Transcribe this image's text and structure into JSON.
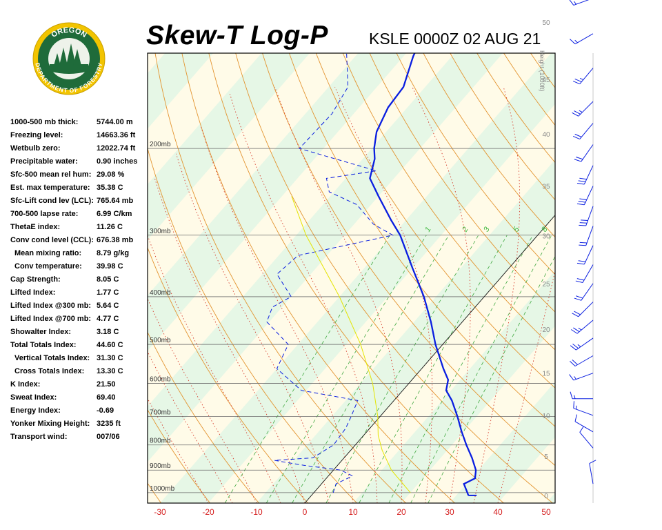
{
  "header": {
    "title": "Skew-T Log-P",
    "station": "KSLE 0000Z 02 AUG 21"
  },
  "logo": {
    "top_text": "OREGON",
    "bottom_text": "DEPARTMENT OF FORESTRY",
    "colors": {
      "ring": "#f2c400",
      "field": "#1f6b3a",
      "text": "#ffffff"
    }
  },
  "indices": [
    {
      "label": "1000-500 mb thick:",
      "value": "5744.00 m",
      "indent": false
    },
    {
      "label": "Freezing level:",
      "value": "14663.36 ft",
      "indent": false
    },
    {
      "label": "Wetbulb zero:",
      "value": "12022.74 ft",
      "indent": false
    },
    {
      "label": "Precipitable water:",
      "value": "0.90 inches",
      "indent": false
    },
    {
      "label": "Sfc-500 mean rel hum:",
      "value": "29.08 %",
      "indent": false
    },
    {
      "label": "Est. max temperature:",
      "value": "35.38 C",
      "indent": false
    },
    {
      "label": "Sfc-Lift cond lev (LCL):",
      "value": "765.64 mb",
      "indent": false
    },
    {
      "label": "700-500 lapse rate:",
      "value": "6.99 C/km",
      "indent": false
    },
    {
      "label": "ThetaE index:",
      "value": "11.26 C",
      "indent": false
    },
    {
      "label": "Conv cond level (CCL):",
      "value": "676.38 mb",
      "indent": false
    },
    {
      "label": "Mean mixing ratio:",
      "value": "8.79 g/kg",
      "indent": true
    },
    {
      "label": "Conv temperature:",
      "value": "39.98 C",
      "indent": true
    },
    {
      "label": "Cap Strength:",
      "value": "8.05 C",
      "indent": false
    },
    {
      "label": "Lifted Index:",
      "value": "1.77 C",
      "indent": false
    },
    {
      "label": "Lifted Index @300 mb:",
      "value": "5.64 C",
      "indent": false
    },
    {
      "label": "Lifted Index @700 mb:",
      "value": "4.77 C",
      "indent": false
    },
    {
      "label": "Showalter Index:",
      "value": "3.18 C",
      "indent": false
    },
    {
      "label": "Total Totals Index:",
      "value": "44.60 C",
      "indent": false
    },
    {
      "label": "Vertical Totals Index:",
      "value": "31.30 C",
      "indent": true
    },
    {
      "label": "Cross Totals Index:",
      "value": "13.30 C",
      "indent": true
    },
    {
      "label": "K Index:",
      "value": "21.50",
      "indent": false
    },
    {
      "label": "Sweat Index:",
      "value": "69.40",
      "indent": false
    },
    {
      "label": "Energy Index:",
      "value": "-0.69",
      "indent": false
    },
    {
      "label": "Yonker Mixing Height:",
      "value": "3235 ft",
      "indent": false
    },
    {
      "label": "Transport wind:",
      "value": "007/06",
      "indent": false
    }
  ],
  "chart_data": {
    "type": "line",
    "xlim": [
      -30,
      50
    ],
    "temperature_ticks": [
      -30,
      -20,
      -10,
      0,
      10,
      20,
      30,
      40,
      50
    ],
    "pressure_levels": [
      {
        "p": 200,
        "label": "200mb"
      },
      {
        "p": 300,
        "label": "300mb"
      },
      {
        "p": 400,
        "label": "400mb"
      },
      {
        "p": 500,
        "label": "500mb"
      },
      {
        "p": 600,
        "label": "600mb"
      },
      {
        "p": 700,
        "label": "700mb"
      },
      {
        "p": 800,
        "label": "800mb"
      },
      {
        "p": 900,
        "label": "900mb"
      },
      {
        "p": 1000,
        "label": "1000mb"
      }
    ],
    "height_axis": {
      "title": "Height (1000ft)",
      "ticks": [
        0,
        5,
        10,
        15,
        20,
        25,
        30,
        35,
        40,
        45,
        50
      ]
    },
    "mixing_ratio_labels": [
      "1",
      "2",
      "3",
      "5",
      "8"
    ],
    "series": [
      {
        "role": "temperature",
        "color": "#0a1ee0",
        "points": [
          {
            "p": 1013,
            "t": 32.5
          },
          {
            "p": 1000,
            "t": 31.8
          },
          {
            "p": 960,
            "t": 29.5
          },
          {
            "p": 935,
            "t": 30.8
          },
          {
            "p": 900,
            "t": 29.5
          },
          {
            "p": 850,
            "t": 26.5
          },
          {
            "p": 800,
            "t": 23.0
          },
          {
            "p": 750,
            "t": 19.5
          },
          {
            "p": 700,
            "t": 16.0
          },
          {
            "p": 650,
            "t": 12.0
          },
          {
            "p": 620,
            "t": 9.0
          },
          {
            "p": 590,
            "t": 7.5
          },
          {
            "p": 560,
            "t": 4.5
          },
          {
            "p": 500,
            "t": -1.5
          },
          {
            "p": 450,
            "t": -6.5
          },
          {
            "p": 400,
            "t": -12.5
          },
          {
            "p": 350,
            "t": -20.0
          },
          {
            "p": 300,
            "t": -28.5
          },
          {
            "p": 280,
            "t": -33.0
          },
          {
            "p": 250,
            "t": -40.0
          },
          {
            "p": 230,
            "t": -45.0
          },
          {
            "p": 210,
            "t": -47.5
          },
          {
            "p": 200,
            "t": -49.5
          },
          {
            "p": 185,
            "t": -52.0
          },
          {
            "p": 165,
            "t": -54.0
          },
          {
            "p": 150,
            "t": -54.5
          },
          {
            "p": 130,
            "t": -58.0
          },
          {
            "p": 110,
            "t": -61.0
          },
          {
            "p": 100,
            "t": -63.0
          }
        ]
      },
      {
        "role": "dewpoint",
        "color": "#0a1ee0",
        "points": [
          {
            "p": 1000,
            "t": 4.0
          },
          {
            "p": 960,
            "t": 3.0
          },
          {
            "p": 925,
            "t": 5.0
          },
          {
            "p": 900,
            "t": 1.5
          },
          {
            "p": 880,
            "t": -7.0
          },
          {
            "p": 860,
            "t": -14.0
          },
          {
            "p": 850,
            "t": -6.5
          },
          {
            "p": 800,
            "t": -4.5
          },
          {
            "p": 740,
            "t": -5.0
          },
          {
            "p": 700,
            "t": -6.0
          },
          {
            "p": 650,
            "t": -7.5
          },
          {
            "p": 620,
            "t": -21.0
          },
          {
            "p": 560,
            "t": -30.0
          },
          {
            "p": 500,
            "t": -32.0
          },
          {
            "p": 450,
            "t": -40.5
          },
          {
            "p": 420,
            "t": -42.0
          },
          {
            "p": 400,
            "t": -40.0
          },
          {
            "p": 360,
            "t": -47.0
          },
          {
            "p": 330,
            "t": -46.0
          },
          {
            "p": 300,
            "t": -30.0
          },
          {
            "p": 285,
            "t": -36.0
          },
          {
            "p": 260,
            "t": -43.0
          },
          {
            "p": 245,
            "t": -51.0
          },
          {
            "p": 230,
            "t": -54.0
          },
          {
            "p": 222,
            "t": -45.0
          },
          {
            "p": 200,
            "t": -65.0
          },
          {
            "p": 170,
            "t": -64.5
          },
          {
            "p": 150,
            "t": -66.0
          },
          {
            "p": 120,
            "t": -75.0
          },
          {
            "p": 100,
            "t": -74.0
          }
        ]
      },
      {
        "role": "parcel",
        "color": "#e4e400",
        "points": [
          {
            "p": 1000,
            "t": 20.0
          },
          {
            "p": 900,
            "t": 12.0
          },
          {
            "p": 820,
            "t": 6.5
          },
          {
            "p": 765,
            "t": 3.0
          },
          {
            "p": 700,
            "t": -0.5
          },
          {
            "p": 600,
            "t": -7.5
          },
          {
            "p": 500,
            "t": -17.0
          },
          {
            "p": 400,
            "t": -30.0
          },
          {
            "p": 300,
            "t": -48.0
          },
          {
            "p": 250,
            "t": -58.0
          }
        ]
      }
    ],
    "wind_barbs": {
      "color": "#0a1ee0",
      "barbs": [
        {
          "h": 1.5,
          "dir": 350,
          "kt": 10
        },
        {
          "h": 6,
          "dir": 320,
          "kt": 10
        },
        {
          "h": 8,
          "dir": 300,
          "kt": 10
        },
        {
          "h": 10,
          "dir": 290,
          "kt": 15
        },
        {
          "h": 12,
          "dir": 270,
          "kt": 15
        },
        {
          "h": 15,
          "dir": 250,
          "kt": 15
        },
        {
          "h": 17,
          "dir": 240,
          "kt": 20
        },
        {
          "h": 19,
          "dir": 235,
          "kt": 25
        },
        {
          "h": 21,
          "dir": 230,
          "kt": 25
        },
        {
          "h": 23,
          "dir": 225,
          "kt": 20
        },
        {
          "h": 25,
          "dir": 215,
          "kt": 20
        },
        {
          "h": 27,
          "dir": 210,
          "kt": 20
        },
        {
          "h": 29,
          "dir": 205,
          "kt": 20
        },
        {
          "h": 31,
          "dir": 200,
          "kt": 20
        },
        {
          "h": 33,
          "dir": 200,
          "kt": 30
        },
        {
          "h": 35,
          "dir": 205,
          "kt": 30
        },
        {
          "h": 37,
          "dir": 205,
          "kt": 30
        },
        {
          "h": 39,
          "dir": 215,
          "kt": 20
        },
        {
          "h": 41,
          "dir": 220,
          "kt": 20
        },
        {
          "h": 43,
          "dir": 225,
          "kt": 25
        },
        {
          "h": 46,
          "dir": 220,
          "kt": 25
        },
        {
          "h": 49,
          "dir": 240,
          "kt": 15
        },
        {
          "h": 52,
          "dir": 250,
          "kt": 15
        },
        {
          "h": 55,
          "dir": 260,
          "kt": 15
        }
      ]
    }
  }
}
